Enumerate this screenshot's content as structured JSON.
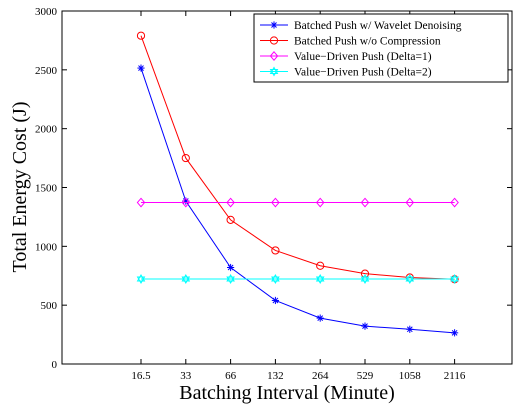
{
  "chart_data": {
    "type": "line",
    "title": "",
    "xlabel": "Batching Interval (Minute)",
    "ylabel": "Total Energy Cost (J)",
    "categories": [
      "16.5",
      "33",
      "66",
      "132",
      "264",
      "529",
      "1058",
      "2116"
    ],
    "ylim": [
      0,
      3000
    ],
    "yticks": [
      "0",
      "500",
      "1000",
      "1500",
      "2000",
      "2500",
      "3000"
    ],
    "grid": false,
    "legend_position": "top-right",
    "series": [
      {
        "name": "Batched Push w/ Wavelet Denoising",
        "color": "#0000ff",
        "marker": "star",
        "values": [
          2515,
          1385,
          820,
          540,
          390,
          322,
          295,
          265
        ]
      },
      {
        "name": "Batched Push w/o Compression",
        "color": "#ff0000",
        "marker": "circle",
        "values": [
          2790,
          1750,
          1225,
          965,
          835,
          768,
          735,
          720
        ]
      },
      {
        "name": "Value−Driven Push (Delta=1)",
        "color": "#ff00ff",
        "marker": "diamond",
        "values": [
          1372,
          1372,
          1372,
          1372,
          1372,
          1372,
          1372,
          1372
        ]
      },
      {
        "name": "Value−Driven Push (Delta=2)",
        "color": "#00ffff",
        "marker": "hexagram",
        "values": [
          722,
          722,
          722,
          722,
          722,
          722,
          722,
          722
        ]
      }
    ]
  }
}
